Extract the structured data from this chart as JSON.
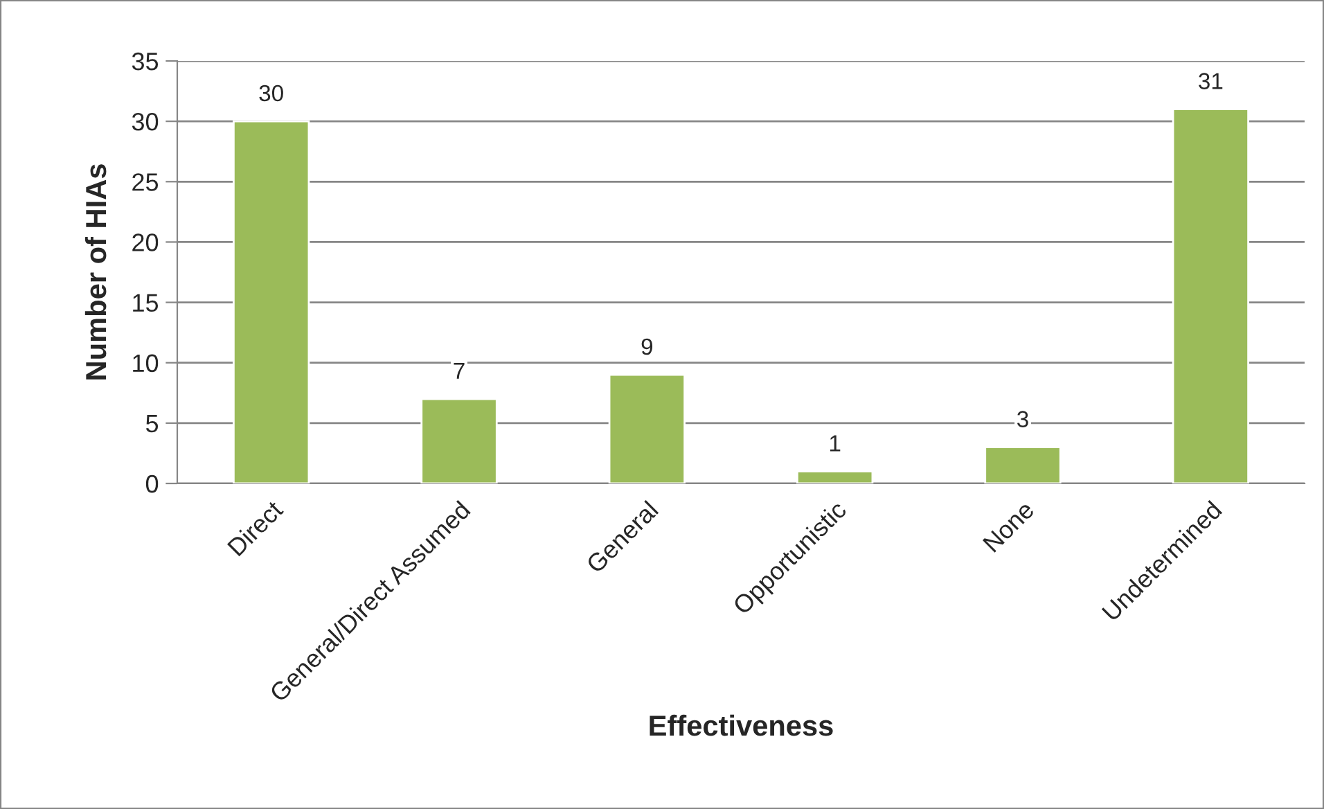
{
  "chart_data": {
    "type": "bar",
    "xlabel": "Effectiveness",
    "ylabel": "Number of HIAs",
    "categories": [
      "Direct",
      "General/Direct Assumed",
      "General",
      "Opportunistic",
      "None",
      "Undetermined"
    ],
    "values": [
      30,
      7,
      9,
      1,
      3,
      31
    ],
    "color": "#9bbb59",
    "ylim": [
      0,
      35
    ],
    "yticks": [
      0,
      5,
      10,
      15,
      20,
      25,
      30,
      35
    ],
    "grid": "y",
    "data_labels": true
  }
}
